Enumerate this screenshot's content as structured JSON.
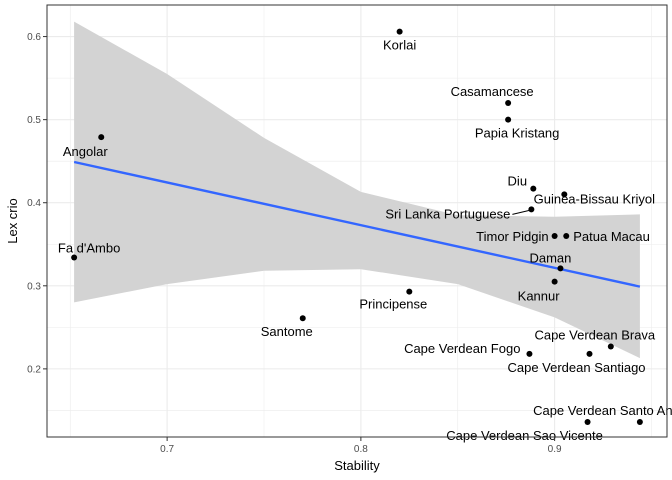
{
  "chart_data": {
    "type": "scatter",
    "xlabel": "Stability",
    "ylabel": "Lex crio",
    "xlim": [
      0.638,
      0.958
    ],
    "ylim": [
      0.118,
      0.638
    ],
    "x_ticks": [
      {
        "value": 0.7,
        "label": "0.7"
      },
      {
        "value": 0.8,
        "label": "0.8"
      },
      {
        "value": 0.9,
        "label": "0.9"
      }
    ],
    "y_ticks": [
      {
        "value": 0.2,
        "label": "0.2"
      },
      {
        "value": 0.3,
        "label": "0.3"
      },
      {
        "value": 0.4,
        "label": "0.4"
      },
      {
        "value": 0.5,
        "label": "0.5"
      },
      {
        "value": 0.6,
        "label": "0.6"
      }
    ],
    "grid": true,
    "points": [
      {
        "label": "Korlai",
        "x": 0.82,
        "y": 0.606
      },
      {
        "label": "Casamancese",
        "x": 0.876,
        "y": 0.52
      },
      {
        "label": "Papia Kristang",
        "x": 0.876,
        "y": 0.5
      },
      {
        "label": "Angolar",
        "x": 0.666,
        "y": 0.479
      },
      {
        "label": "Diu",
        "x": 0.889,
        "y": 0.417
      },
      {
        "label": "Guinea-Bissau Kriyol",
        "x": 0.905,
        "y": 0.41
      },
      {
        "label": "Sri Lanka Portuguese",
        "x": 0.888,
        "y": 0.392
      },
      {
        "label": "Timor Pidgin",
        "x": 0.9,
        "y": 0.36
      },
      {
        "label": "Patua Macau",
        "x": 0.906,
        "y": 0.36
      },
      {
        "label": "Fa d'Ambo",
        "x": 0.652,
        "y": 0.334
      },
      {
        "label": "Daman",
        "x": 0.903,
        "y": 0.321
      },
      {
        "label": "Kannur",
        "x": 0.9,
        "y": 0.305
      },
      {
        "label": "Principense",
        "x": 0.825,
        "y": 0.293
      },
      {
        "label": "Santome",
        "x": 0.77,
        "y": 0.261
      },
      {
        "label": "Cape Verdean Brava",
        "x": 0.929,
        "y": 0.227
      },
      {
        "label": "Cape Verdean Fogo",
        "x": 0.887,
        "y": 0.218
      },
      {
        "label": "Cape Verdean Santiago",
        "x": 0.918,
        "y": 0.218
      },
      {
        "label": "Cape Verdean Santo Antao",
        "x": 0.944,
        "y": 0.136
      },
      {
        "label": "Cape Verdean Sao Vicente",
        "x": 0.917,
        "y": 0.136
      }
    ],
    "regression": {
      "method": "linear",
      "x_range": [
        0.652,
        0.944
      ],
      "fit": [
        0.449,
        0.299
      ],
      "band_x": [
        0.652,
        0.7,
        0.75,
        0.8,
        0.85,
        0.9,
        0.944
      ],
      "band_lower": [
        0.28,
        0.302,
        0.318,
        0.32,
        0.302,
        0.262,
        0.213
      ],
      "band_upper": [
        0.618,
        0.555,
        0.478,
        0.413,
        0.385,
        0.383,
        0.386
      ]
    },
    "colors": {
      "line": "#3366FF",
      "band": "#D3D3D3",
      "point": "#000000",
      "grid": "#EBEBEB",
      "frame": "#333333"
    }
  }
}
